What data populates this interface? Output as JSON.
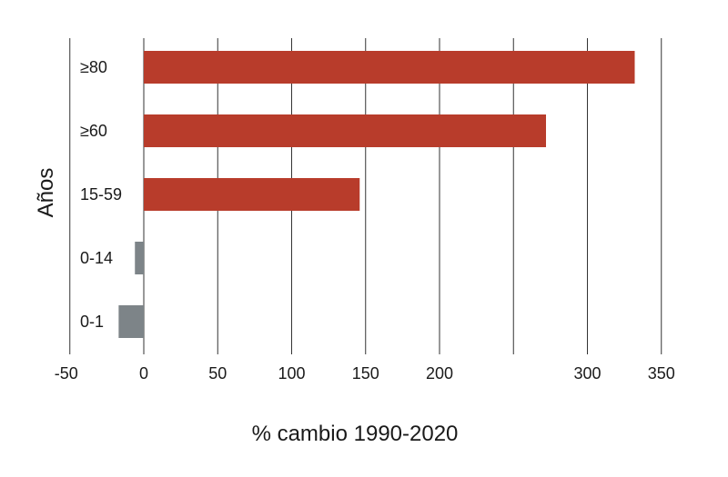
{
  "chart_data": {
    "type": "bar",
    "orientation": "horizontal",
    "categories": [
      "≥80",
      "≥60",
      "15-59",
      "0-14",
      "0-1"
    ],
    "values": [
      332,
      272,
      146,
      -6,
      -17
    ],
    "xlabel": "% cambio 1990-2020",
    "ylabel": "Años",
    "xlim": [
      -50,
      350
    ],
    "x_ticks": [
      -50,
      0,
      50,
      100,
      150,
      200,
      300,
      350
    ],
    "grid": true,
    "colors": {
      "positive": "#b83c2b",
      "negative": "#7d8488",
      "grid": "#333333"
    }
  }
}
